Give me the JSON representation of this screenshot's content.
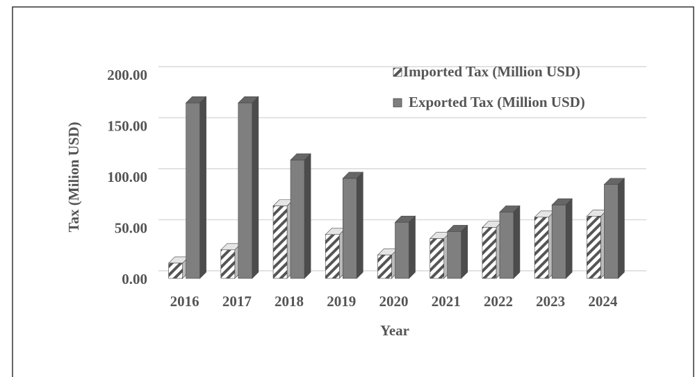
{
  "chart_data": {
    "type": "bar3d",
    "x_label": "Year",
    "y_label": "Tax (Milion USD)",
    "categories": [
      "2016",
      "2017",
      "2018",
      "2019",
      "2020",
      "2021",
      "2022",
      "2023",
      "2024"
    ],
    "series": [
      {
        "name": "Imported Tax (Million USD)",
        "color": "#ffffff",
        "pattern": "hatch",
        "values": [
          15,
          28,
          71,
          43,
          23,
          39,
          50,
          60,
          61
        ]
      },
      {
        "name": "Exported Tax (Million USD)",
        "color": "#7f7f7f",
        "values": [
          172,
          172,
          116,
          98,
          55,
          46,
          65,
          72,
          92
        ]
      }
    ],
    "ylim": [
      0,
      200
    ],
    "yticks": [
      {
        "value": 0,
        "label": "0.00"
      },
      {
        "value": 50,
        "label": "50.00"
      },
      {
        "value": 100,
        "label": "100.00"
      },
      {
        "value": 150,
        "label": "150.00"
      },
      {
        "value": 200,
        "label": "200.00"
      }
    ],
    "grid": true,
    "legend": "top-right"
  }
}
